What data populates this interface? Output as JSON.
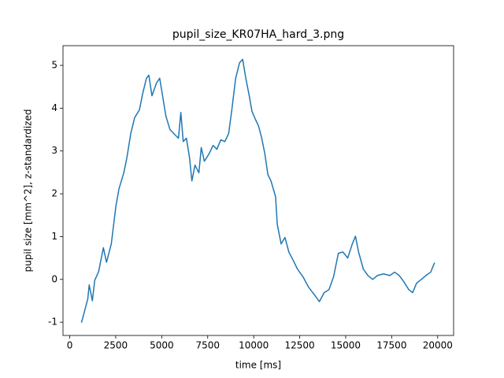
{
  "chart_data": {
    "type": "line",
    "title": "pupil_size_KR07HA_hard_3.png",
    "x_label": "time [ms]",
    "y_label": "pupil size [mm^2], z-standardized",
    "color": "#1f77b4",
    "x": [
      640,
      980,
      1060,
      1230,
      1360,
      1570,
      1830,
      2000,
      2260,
      2510,
      2680,
      2940,
      3110,
      3320,
      3530,
      3790,
      3960,
      4170,
      4300,
      4470,
      4720,
      4890,
      5020,
      5230,
      5450,
      5740,
      5910,
      6040,
      6170,
      6340,
      6510,
      6640,
      6810,
      7020,
      7150,
      7320,
      7570,
      7790,
      8000,
      8210,
      8430,
      8640,
      8810,
      9020,
      9230,
      9400,
      9570,
      9740,
      9910,
      10090,
      10260,
      10430,
      10600,
      10770,
      10940,
      11190,
      11280,
      11490,
      11700,
      11910,
      12130,
      12380,
      12680,
      12980,
      13320,
      13570,
      13830,
      14090,
      14340,
      14600,
      14850,
      15110,
      15360,
      15530,
      15700,
      15960,
      16210,
      16470,
      16720,
      17060,
      17400,
      17660,
      17910,
      18170,
      18430,
      18640,
      18850,
      19110,
      19360,
      19620,
      19830
    ],
    "values": [
      -1.01,
      -0.46,
      -0.13,
      -0.5,
      -0.02,
      0.18,
      0.74,
      0.4,
      0.83,
      1.71,
      2.12,
      2.49,
      2.85,
      3.41,
      3.78,
      3.96,
      4.33,
      4.7,
      4.77,
      4.29,
      4.59,
      4.7,
      4.36,
      3.81,
      3.5,
      3.37,
      3.3,
      3.9,
      3.22,
      3.3,
      2.85,
      2.3,
      2.67,
      2.49,
      3.08,
      2.76,
      2.93,
      3.13,
      3.04,
      3.26,
      3.22,
      3.41,
      3.96,
      4.7,
      5.06,
      5.14,
      4.7,
      4.33,
      3.92,
      3.74,
      3.59,
      3.31,
      2.95,
      2.45,
      2.3,
      1.93,
      1.29,
      0.83,
      0.98,
      0.64,
      0.46,
      0.24,
      0.06,
      -0.18,
      -0.37,
      -0.52,
      -0.31,
      -0.24,
      0.06,
      0.61,
      0.64,
      0.5,
      0.83,
      1.01,
      0.64,
      0.24,
      0.09,
      0,
      0.09,
      0.13,
      0.09,
      0.17,
      0.09,
      -0.06,
      -0.24,
      -0.31,
      -0.09,
      0,
      0.09,
      0.17,
      0.39
    ],
    "xlim": [
      -365,
      20865
    ],
    "ylim": [
      -1.31,
      5.46
    ],
    "xticks": [
      0,
      2500,
      5000,
      7500,
      10000,
      12500,
      15000,
      17500,
      20000
    ],
    "yticks": [
      -1,
      0,
      1,
      2,
      3,
      4,
      5
    ]
  }
}
